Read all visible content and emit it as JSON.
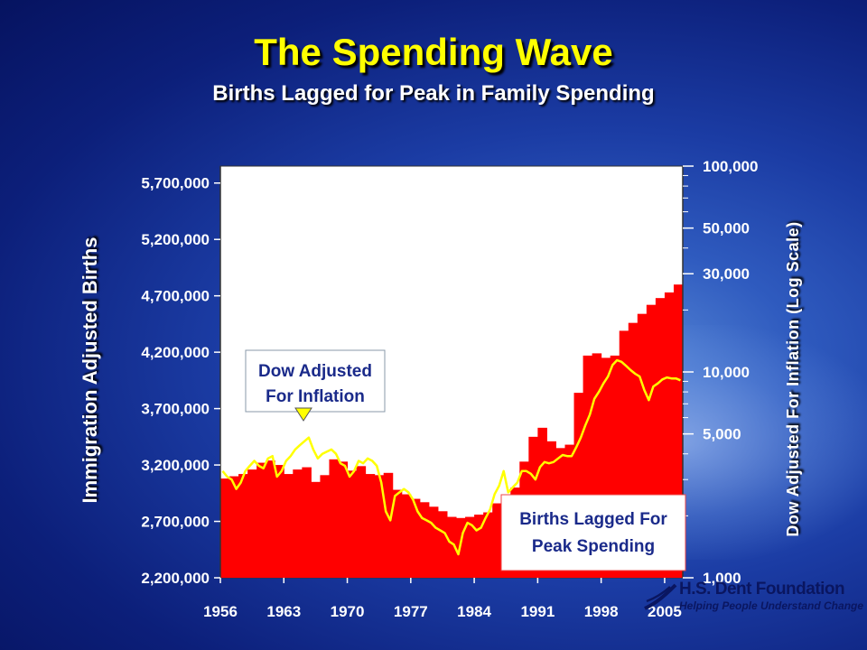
{
  "slide": {
    "title": "The Spending Wave",
    "subtitle": "Births Lagged for Peak in Family Spending"
  },
  "logo": {
    "name": "H.S. Dent Foundation",
    "tagline": "Helping People Understand Change"
  },
  "colors": {
    "births_bar": "#ff0000",
    "dow_line": "#ffff00",
    "title": "#ffff00",
    "plot_bg": "#ffffff"
  },
  "chart_data": {
    "type": "bar",
    "title": "The Spending Wave",
    "subtitle": "Births Lagged for Peak in Family Spending",
    "xlabel": "",
    "ylabel_left": "Immigration Adjusted Births",
    "ylabel_right": "Dow Adjusted For Inflation (Log Scale)",
    "x_tick_labels": [
      "1956",
      "1963",
      "1970",
      "1977",
      "1984",
      "1991",
      "1998",
      "2005"
    ],
    "x_range": [
      1956,
      2007
    ],
    "y_left_ticks": [
      2200000,
      2700000,
      3200000,
      3700000,
      4200000,
      4700000,
      5200000,
      5700000
    ],
    "y_left_tick_labels": [
      "2,200,000",
      "2,700,000",
      "3,200,000",
      "3,700,000",
      "4,200,000",
      "4,700,000",
      "5,200,000",
      "5,700,000"
    ],
    "y_left_range": [
      2200000,
      5850000
    ],
    "y_right_ticks": [
      1000,
      5000,
      10000,
      30000,
      50000,
      100000
    ],
    "y_right_tick_labels": [
      "1,000",
      "5,000",
      "10,000",
      "30,000",
      "50,000",
      "100,000"
    ],
    "y_right_range": [
      1000,
      100000
    ],
    "y_right_scale": "log",
    "grid": false,
    "annotations": [
      "Dow Adjusted\nFor Inflation",
      "Births Lagged For\nPeak Spending"
    ],
    "series": [
      {
        "name": "Births Lagged For Peak Spending",
        "kind": "bar",
        "axis": "left",
        "x": [
          1956,
          1957,
          1958,
          1959,
          1960,
          1961,
          1962,
          1963,
          1964,
          1965,
          1966,
          1967,
          1968,
          1969,
          1970,
          1971,
          1972,
          1973,
          1974,
          1975,
          1976,
          1977,
          1978,
          1979,
          1980,
          1981,
          1982,
          1983,
          1984,
          1985,
          1986,
          1987,
          1988,
          1989,
          1990,
          1991,
          1992,
          1993,
          1994,
          1995,
          1996,
          1997,
          1998,
          1999,
          2000,
          2001,
          2002,
          2003,
          2004,
          2005,
          2006
        ],
        "values": [
          3080000,
          3100000,
          3120000,
          3160000,
          3220000,
          3240000,
          3200000,
          3120000,
          3160000,
          3180000,
          3050000,
          3110000,
          3250000,
          3230000,
          3150000,
          3190000,
          3120000,
          3110000,
          3130000,
          2980000,
          2940000,
          2900000,
          2870000,
          2830000,
          2790000,
          2740000,
          2730000,
          2740000,
          2760000,
          2780000,
          2860000,
          2920000,
          3000000,
          3230000,
          3450000,
          3530000,
          3410000,
          3350000,
          3380000,
          3840000,
          4170000,
          4190000,
          4150000,
          4170000,
          4390000,
          4460000,
          4540000,
          4620000,
          4680000,
          4730000,
          4800000
        ]
      },
      {
        "name": "Dow Adjusted For Inflation",
        "kind": "line",
        "axis": "right",
        "x": [
          1956,
          1956.5,
          1957,
          1957.5,
          1958,
          1958.5,
          1959,
          1959.5,
          1960,
          1960.5,
          1961,
          1961.5,
          1962,
          1962.5,
          1963,
          1963.5,
          1964,
          1964.5,
          1965,
          1965.5,
          1966,
          1966.5,
          1967,
          1967.5,
          1968,
          1968.5,
          1969,
          1969.5,
          1970,
          1970.5,
          1971,
          1971.5,
          1972,
          1972.5,
          1973,
          1973.5,
          1974,
          1974.5,
          1975,
          1975.5,
          1976,
          1976.5,
          1977,
          1977.5,
          1978,
          1978.5,
          1979,
          1979.5,
          1980,
          1980.5,
          1981,
          1981.5,
          1982,
          1982.5,
          1983,
          1983.5,
          1984,
          1984.5,
          1985,
          1985.5,
          1986,
          1986.5,
          1987,
          1987.5,
          1988,
          1988.5,
          1989,
          1989.5,
          1990,
          1990.5,
          1991,
          1991.5,
          1992,
          1992.5,
          1993,
          1993.5,
          1994,
          1994.5,
          1995,
          1995.5,
          1996,
          1996.5,
          1997,
          1997.5,
          1998,
          1998.5,
          1999,
          1999.5,
          2000,
          2000.5,
          2001,
          2001.5,
          2002,
          2002.5,
          2003,
          2003.5,
          2004,
          2004.5,
          2005,
          2005.5,
          2006,
          2006.5
        ],
        "values": [
          3300,
          3100,
          3000,
          2700,
          2900,
          3300,
          3500,
          3700,
          3500,
          3400,
          3800,
          3900,
          3100,
          3300,
          3700,
          3900,
          4200,
          4400,
          4600,
          4800,
          4200,
          3800,
          4000,
          4100,
          4200,
          4000,
          3600,
          3500,
          3100,
          3300,
          3700,
          3600,
          3800,
          3700,
          3500,
          2900,
          2100,
          1900,
          2500,
          2600,
          2700,
          2600,
          2400,
          2100,
          1950,
          1900,
          1850,
          1750,
          1700,
          1650,
          1500,
          1450,
          1300,
          1650,
          1850,
          1800,
          1700,
          1750,
          1950,
          2150,
          2550,
          2800,
          3300,
          2600,
          2750,
          2900,
          3300,
          3300,
          3200,
          3000,
          3450,
          3650,
          3600,
          3650,
          3800,
          3950,
          3900,
          3900,
          4300,
          4800,
          5500,
          6200,
          7400,
          8000,
          8800,
          9500,
          10800,
          11400,
          11200,
          10700,
          10200,
          9800,
          9500,
          8200,
          7300,
          8500,
          8800,
          9200,
          9400,
          9300,
          9300,
          9100
        ]
      }
    ]
  }
}
